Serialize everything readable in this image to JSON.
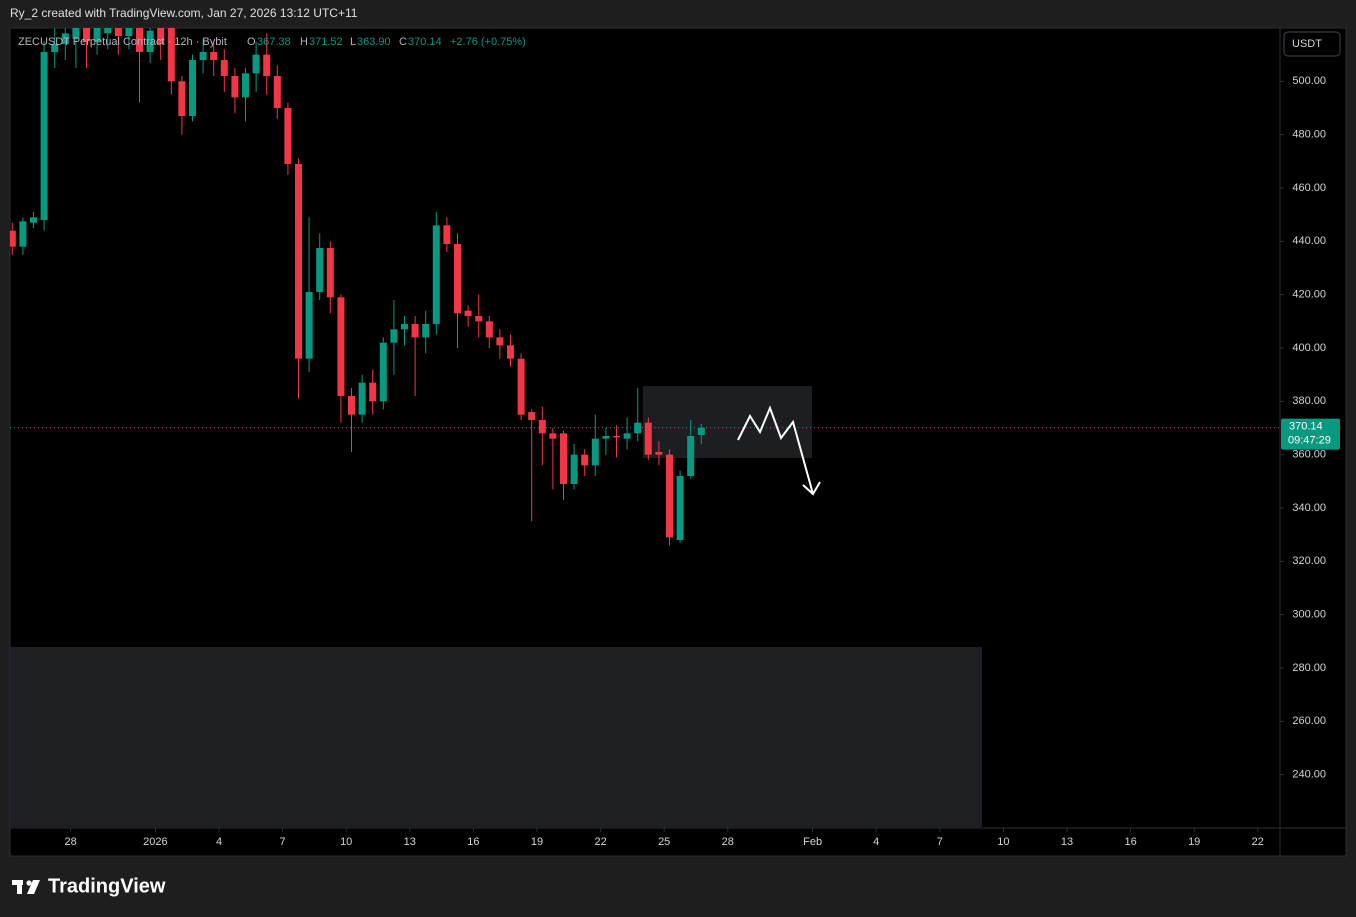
{
  "header": {
    "credit": "Ry_2 created with TradingView.com, Jan 27, 2026 13:12 UTC+11",
    "brand": "TradingView"
  },
  "legend": {
    "symbol": "ZECUSDT Perpetual Contract · 12h · Bybit",
    "o_label": "O",
    "o": "367.38",
    "h_label": "H",
    "h": "371.52",
    "l_label": "L",
    "l": "363.90",
    "c_label": "C",
    "c": "370.14",
    "change": "+2.76 (+0.75%)"
  },
  "currency_button": "USDT",
  "chart_data": {
    "type": "candlestick",
    "up_color": "#089981",
    "down_color": "#f23645",
    "x": [
      0.25,
      0.75,
      1.25,
      1.75,
      2.25,
      2.75,
      3.25,
      3.75,
      4.25,
      4.75,
      5.25,
      5.75,
      6.25,
      6.75,
      7.25,
      7.75,
      8.25,
      8.75,
      9.25,
      9.75,
      10.25,
      10.75,
      11.25,
      11.75,
      12.25,
      12.75,
      13.25,
      13.75,
      14.25,
      14.75,
      15.25,
      15.75,
      16.25,
      16.75,
      17.25,
      17.75,
      18.25,
      18.75,
      19.25,
      19.75,
      20.25,
      20.75,
      21.25,
      21.75,
      22.25,
      22.75,
      23.25,
      23.75,
      24.25,
      24.75,
      25.25,
      25.75,
      26.25,
      26.75,
      27.25,
      27.75,
      28.25,
      28.75,
      29.25,
      29.75,
      30.25,
      30.75,
      31.25,
      31.75,
      32.25,
      32.75
    ],
    "open": [
      444,
      438,
      447,
      448,
      511,
      514,
      516,
      522,
      515,
      518,
      523,
      517,
      522,
      511,
      520,
      520,
      500,
      487,
      508,
      511,
      508,
      502,
      494,
      503,
      510,
      502,
      490,
      469,
      396,
      421,
      437.5,
      419,
      382,
      375,
      387,
      380,
      402,
      407,
      409,
      404,
      409,
      446,
      439,
      414,
      412,
      410,
      404,
      401,
      396,
      376,
      373,
      368,
      368,
      349,
      360,
      356,
      366,
      367,
      366,
      368,
      372,
      361,
      360,
      328,
      352,
      367.38
    ],
    "high": [
      447,
      449,
      451,
      515,
      520,
      521,
      524,
      525,
      524,
      526,
      527,
      525,
      526,
      524,
      525,
      523,
      502,
      510,
      516,
      515,
      512,
      505,
      505,
      515,
      518,
      506,
      492,
      471,
      449,
      443,
      440,
      420,
      385,
      390,
      392,
      404,
      418,
      412,
      412,
      414,
      451,
      449,
      443,
      416,
      420,
      412,
      407,
      405,
      398,
      377,
      378,
      370,
      369,
      364,
      362,
      375,
      370,
      371,
      374,
      385,
      374,
      365,
      362,
      354,
      373,
      371.52
    ],
    "low": [
      435,
      435,
      445,
      444,
      505,
      508,
      505,
      505,
      510,
      512,
      510,
      512,
      492,
      507,
      508,
      495,
      480,
      485,
      503,
      502,
      496,
      488,
      485,
      496,
      495,
      486,
      465,
      381,
      391,
      418,
      413,
      372,
      361,
      372,
      375,
      377,
      390,
      401,
      382,
      398,
      405,
      436,
      400,
      408,
      404,
      400,
      396,
      393,
      373,
      335,
      356,
      347,
      343,
      347,
      352,
      352,
      360,
      359,
      362,
      365,
      358,
      356,
      326,
      327,
      351,
      363.9
    ],
    "close": [
      438,
      447.5,
      449,
      511,
      514,
      518,
      520,
      515,
      520,
      523,
      517,
      522,
      511,
      519,
      514,
      500,
      487,
      508,
      511,
      508,
      502,
      494,
      503,
      510,
      502,
      490,
      469,
      396,
      421,
      437.5,
      419,
      382,
      375,
      387,
      380,
      402,
      407,
      409,
      404,
      409,
      446,
      439,
      413,
      412,
      410,
      404,
      401,
      396,
      375,
      373,
      368,
      366,
      349,
      360,
      356,
      366,
      367,
      366.5,
      368,
      372,
      360,
      360,
      329,
      352,
      367,
      370.14
    ],
    "xlim": [
      0,
      60
    ],
    "xticks": [
      {
        "value": 3,
        "label": "28"
      },
      {
        "value": 7,
        "label": "2026"
      },
      {
        "value": 10,
        "label": "4"
      },
      {
        "value": 13,
        "label": "7"
      },
      {
        "value": 16,
        "label": "10"
      },
      {
        "value": 19,
        "label": "13"
      },
      {
        "value": 22,
        "label": "16"
      },
      {
        "value": 25,
        "label": "19"
      },
      {
        "value": 28,
        "label": "22"
      },
      {
        "value": 31,
        "label": "25"
      },
      {
        "value": 34,
        "label": "28"
      },
      {
        "value": 38,
        "label": "Feb"
      },
      {
        "value": 41,
        "label": "4"
      },
      {
        "value": 44,
        "label": "7"
      },
      {
        "value": 47,
        "label": "10"
      },
      {
        "value": 50,
        "label": "13"
      },
      {
        "value": 53,
        "label": "16"
      },
      {
        "value": 56,
        "label": "19"
      },
      {
        "value": 59,
        "label": "22"
      }
    ],
    "ylim": [
      220,
      520
    ],
    "yticks": [
      {
        "value": 240,
        "label": "240.00"
      },
      {
        "value": 260,
        "label": "260.00"
      },
      {
        "value": 280,
        "label": "280.00"
      },
      {
        "value": 300,
        "label": "300.00"
      },
      {
        "value": 320,
        "label": "320.00"
      },
      {
        "value": 340,
        "label": "340.00"
      },
      {
        "value": 360,
        "label": "360.00"
      },
      {
        "value": 380,
        "label": "380.00"
      },
      {
        "value": 400,
        "label": "400.00"
      },
      {
        "value": 420,
        "label": "420.00"
      },
      {
        "value": 440,
        "label": "440.00"
      },
      {
        "value": 460,
        "label": "460.00"
      },
      {
        "value": 480,
        "label": "480.00"
      },
      {
        "value": 500,
        "label": "500.00"
      }
    ],
    "last_price": 370.14,
    "countdown": "09:47:29"
  }
}
